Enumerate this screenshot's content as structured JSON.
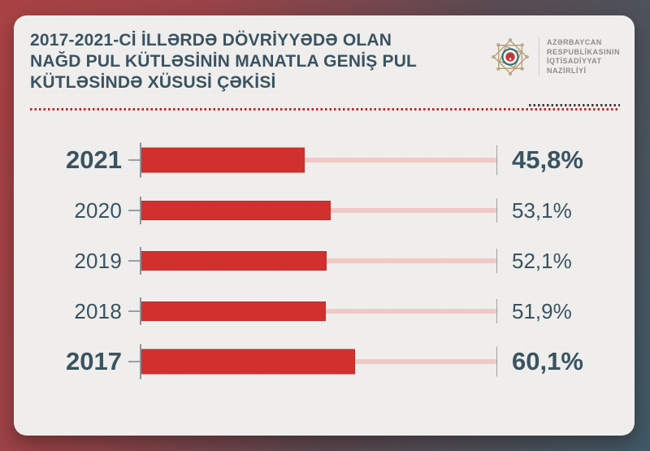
{
  "header": {
    "title_lines": [
      "2017-2021-Cİ İLLƏRDƏ DÖVRİYYƏDƏ OLAN",
      "NAĞD PUL KÜTLƏSİNİN MANATLA GENİŞ PUL",
      "KÜTLƏSİNDƏ XÜSUSİ ÇƏKİSİ"
    ],
    "ministry": {
      "emblem_icon": "azerbaijan-economy-ministry-emblem",
      "name_lines": [
        "AZƏRBAYCAN",
        "RESPUBLİKASININ",
        "İQTİSADİYYAT",
        "NAZİRLİYİ"
      ]
    }
  },
  "chart_data": {
    "type": "bar",
    "orientation": "horizontal",
    "title": "2017-2021-Cİ İLLƏRDƏ DÖVRİYYƏDƏ OLAN NAĞD PUL KÜTLƏSİNİN MANATLA GENİŞ PUL KÜTLƏSİNDƏ XÜSUSİ ÇƏKİSİ",
    "categories": [
      "2021",
      "2020",
      "2019",
      "2018",
      "2017"
    ],
    "values": [
      45.8,
      53.1,
      52.1,
      51.9,
      60.1
    ],
    "value_labels": [
      "45,8%",
      "53,1%",
      "52,1%",
      "51,9%",
      "60,1%"
    ],
    "emphasized_categories": [
      "2021",
      "2017"
    ],
    "xlim": [
      0,
      100
    ],
    "unit": "%",
    "grid": false,
    "legend": false
  },
  "colors": {
    "bar-red": "#d2302e",
    "track-pink": "#f0c9c7",
    "text-slate": "#3a5361",
    "dotted-red": "#c1272d",
    "dotted-dark": "#3f3f3d",
    "card-bg": "#f1f0ee",
    "tick-gray": "#8f9598",
    "ministry-text": "#8e8c8a",
    "emblem-gold": "#b59c74",
    "emblem-teal": "#2e6f6e",
    "emblem-red": "#cf3434",
    "bg-left": "#a94245",
    "bg-mid": "#5b4a51",
    "bg-right": "#3f5a66"
  }
}
